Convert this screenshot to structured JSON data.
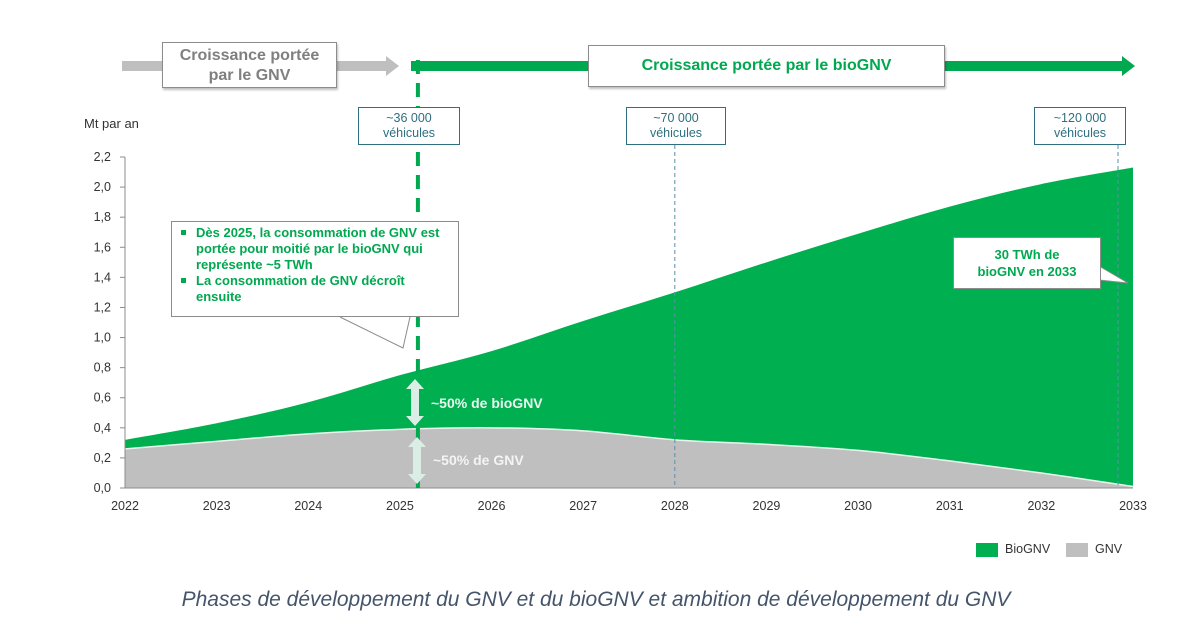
{
  "phases": {
    "gnv_label": "Croissance portée par le GNV",
    "bio_label": "Croissance portée par le bioGNV"
  },
  "vehicle_markers": [
    {
      "year": 2025,
      "label_line1": "~36 000",
      "label_line2": "véhicules"
    },
    {
      "year": 2028,
      "label_line1": "~70 000",
      "label_line2": "véhicules"
    },
    {
      "year": 2033,
      "label_line1": "~120 000",
      "label_line2": "véhicules"
    }
  ],
  "callouts": {
    "main_bullets": [
      "Dès 2025, la consommation de GNV est portée pour moitié par le bioGNV qui représente ~5 TWh",
      "La consommation de GNV décroît ensuite"
    ],
    "end_note": "30 TWh de bioGNV en 2033",
    "share_bio": "~50% de bioGNV",
    "share_gnv": "~50% de GNV"
  },
  "caption": "Phases de développement du GNV et du bioGNV et ambition de développement du GNV",
  "colors": {
    "biognv": "#00b050",
    "gnv": "#bfbfbf",
    "marker": "#2e6f80",
    "phase_gnv_arrow": "#bfbfbf",
    "phase_bio_arrow": "#00a84f"
  },
  "chart_data": {
    "type": "area",
    "stacked": true,
    "title": "",
    "ylabel": "Mt par an",
    "xlabel": "",
    "x": [
      2022,
      2023,
      2024,
      2025,
      2026,
      2027,
      2028,
      2029,
      2030,
      2031,
      2032,
      2033
    ],
    "ylim": [
      0,
      2.2
    ],
    "yticks": [
      "0,0",
      "0,2",
      "0,4",
      "0,6",
      "0,8",
      "1,0",
      "1,2",
      "1,4",
      "1,6",
      "1,8",
      "2,0",
      "2,2"
    ],
    "xticks": [
      "2022",
      "2023",
      "2024",
      "2025",
      "2026",
      "2027",
      "2028",
      "2029",
      "2030",
      "2031",
      "2032",
      "2033"
    ],
    "series": [
      {
        "name": "GNV",
        "values": [
          0.26,
          0.31,
          0.36,
          0.39,
          0.4,
          0.38,
          0.32,
          0.29,
          0.25,
          0.18,
          0.1,
          0.01
        ]
      },
      {
        "name": "BioGNV",
        "values": [
          0.06,
          0.12,
          0.21,
          0.36,
          0.51,
          0.73,
          0.98,
          1.21,
          1.44,
          1.69,
          1.92,
          2.12
        ]
      }
    ],
    "legend": {
      "position": "bottom-right",
      "entries": [
        "BioGNV",
        "GNV"
      ]
    },
    "grid": false
  }
}
